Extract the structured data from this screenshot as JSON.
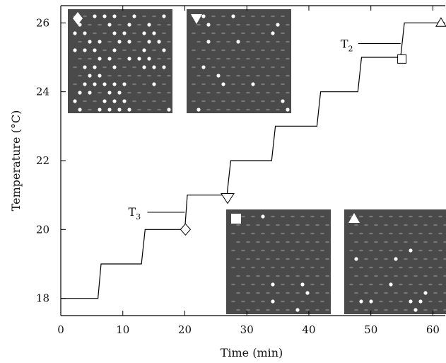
{
  "chart_data": {
    "type": "line",
    "xlabel": "Time (min)",
    "ylabel": "Temperature (°C)",
    "xlim": [
      0,
      62
    ],
    "ylim": [
      17.5,
      26.5
    ],
    "xticks": [
      0,
      10,
      20,
      30,
      40,
      50,
      60
    ],
    "yticks": [
      18,
      20,
      22,
      24,
      26
    ],
    "grid": false,
    "series": [
      {
        "values": [
          [
            0,
            18
          ],
          [
            6,
            18
          ],
          [
            6.5,
            19
          ],
          [
            13,
            19
          ],
          [
            13.6,
            20
          ],
          [
            20,
            20
          ],
          [
            20.4,
            21
          ],
          [
            26.8,
            21
          ],
          [
            27.4,
            22
          ],
          [
            34,
            22
          ],
          [
            34.6,
            23
          ],
          [
            41.3,
            23
          ],
          [
            41.9,
            24
          ],
          [
            47.9,
            24
          ],
          [
            48.5,
            25
          ],
          [
            54.8,
            25
          ],
          [
            55.4,
            26
          ],
          [
            62,
            26
          ]
        ]
      }
    ],
    "markers": [
      {
        "shape": "diamond",
        "x": 20.1,
        "y": 20
      },
      {
        "shape": "triangle-down",
        "x": 26.9,
        "y": 20.9
      },
      {
        "shape": "square",
        "x": 55,
        "y": 24.95
      },
      {
        "shape": "triangle-up",
        "x": 61.3,
        "y": 26
      }
    ],
    "annotations": [
      {
        "main": "T",
        "sub": "3",
        "x": 20,
        "y": 20.5
      },
      {
        "main": "T",
        "sub": "2",
        "x": 54.8,
        "y": 25.4
      }
    ],
    "insets": [
      {
        "marker": "diamond",
        "description": "lattice image, many bright spots"
      },
      {
        "marker": "triangle-down",
        "description": "lattice image, few bright spots"
      },
      {
        "marker": "square",
        "description": "lattice image, few bright spots"
      },
      {
        "marker": "triangle-up",
        "description": "lattice image, few bright spots"
      }
    ]
  },
  "colors": {
    "line": "#000000",
    "inset_bg": "#4a4a4a",
    "inset_spot": "#ffffff",
    "inset_hole": "#8a8a8a"
  }
}
